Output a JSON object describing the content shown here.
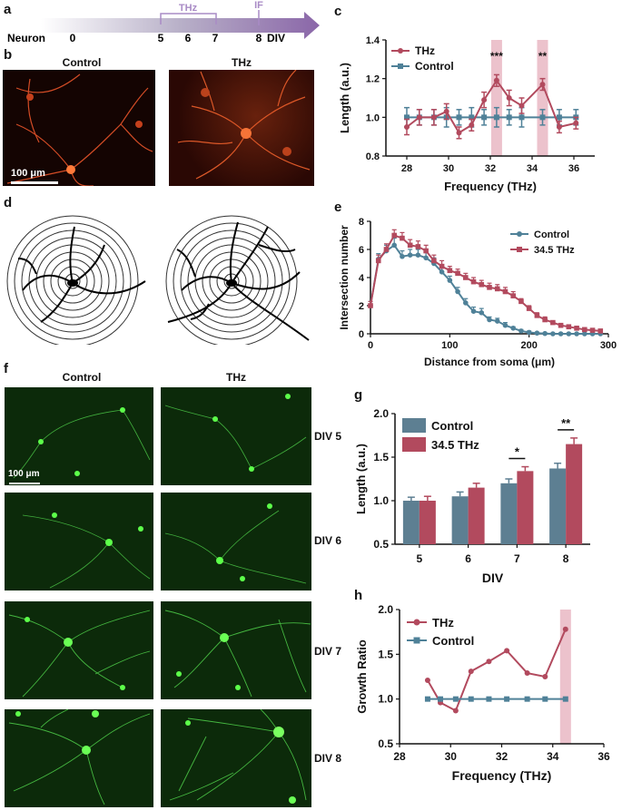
{
  "panels": {
    "a": "a",
    "b": "b",
    "c": "c",
    "d": "d",
    "e": "e",
    "f": "f",
    "g": "g",
    "h": "h"
  },
  "timeline": {
    "label": "Neuron",
    "ticks": [
      "0",
      "5",
      "6",
      "7",
      "8"
    ],
    "end_label": "DIV",
    "thz_label": "THz",
    "if_label": "IF",
    "colors": {
      "start": "#ffffff",
      "end": "#8a66a8",
      "thz": "#a98bc6"
    }
  },
  "images_b": {
    "left_label": "Control",
    "right_label": "THz",
    "scale_bar": "100 μm"
  },
  "images_f": {
    "left_label": "Control",
    "right_label": "THz",
    "scale_bar": "100 μm",
    "rows": [
      "DIV 5",
      "DIV 6",
      "DIV 7",
      "DIV 8"
    ]
  },
  "colors": {
    "thz": "#b24a5e",
    "control": "#4f8198",
    "highlight": "#e7b3bf",
    "bar_control": "#5d7f92",
    "bar_thz": "#b24a5e"
  },
  "chart_data": [
    {
      "id": "c",
      "type": "line",
      "xlabel": "Frequency (THz)",
      "ylabel": "Length (a.u.)",
      "xlim": [
        27,
        37
      ],
      "ylim": [
        0.8,
        1.4
      ],
      "xticks": [
        "28",
        "30",
        "32",
        "34",
        "36"
      ],
      "yticks": [
        "0.8",
        "1.0",
        "1.2",
        "1.4"
      ],
      "highlight_x": [
        32.3,
        34.5
      ],
      "annotations": [
        {
          "x": 32.3,
          "text": "***"
        },
        {
          "x": 34.5,
          "text": "**"
        }
      ],
      "legend": "top-left",
      "series": [
        {
          "name": "THz",
          "x": [
            28,
            28.6,
            29.3,
            29.9,
            30.5,
            31.1,
            31.7,
            32.3,
            32.9,
            33.5,
            34.5,
            35.3,
            36.1
          ],
          "y": [
            0.95,
            1.0,
            1.0,
            1.03,
            0.92,
            0.96,
            1.09,
            1.19,
            1.1,
            1.06,
            1.17,
            0.95,
            0.97
          ],
          "err": [
            0.04,
            0.04,
            0.04,
            0.04,
            0.03,
            0.03,
            0.04,
            0.03,
            0.04,
            0.04,
            0.03,
            0.03,
            0.03
          ]
        },
        {
          "name": "Control",
          "x": [
            28,
            28.6,
            29.3,
            29.9,
            30.5,
            31.1,
            31.7,
            32.3,
            32.9,
            33.5,
            34.5,
            35.3,
            36.1
          ],
          "y": [
            1.0,
            1.0,
            1.0,
            1.0,
            1.0,
            1.0,
            1.0,
            1.0,
            1.0,
            1.0,
            1.0,
            1.0,
            1.0
          ],
          "err": [
            0.05,
            0.04,
            0.04,
            0.05,
            0.04,
            0.05,
            0.04,
            0.05,
            0.04,
            0.05,
            0.04,
            0.04,
            0.04
          ]
        }
      ]
    },
    {
      "id": "e",
      "type": "line",
      "xlabel": "Distance from soma (μm)",
      "ylabel": "Intersection number",
      "xlim": [
        0,
        300
      ],
      "ylim": [
        0,
        8
      ],
      "xticks": [
        "0",
        "100",
        "200",
        "300"
      ],
      "yticks": [
        "0",
        "2",
        "4",
        "6",
        "8"
      ],
      "legend": "top-right",
      "series": [
        {
          "name": "Control",
          "x": [
            0,
            10,
            20,
            30,
            40,
            50,
            60,
            70,
            80,
            90,
            100,
            110,
            120,
            130,
            140,
            150,
            160,
            170,
            180,
            190,
            200,
            210,
            220,
            230,
            240,
            250,
            260,
            270,
            280,
            290
          ],
          "y": [
            2.0,
            5.3,
            5.9,
            6.3,
            5.5,
            5.6,
            5.6,
            5.4,
            5.0,
            4.4,
            3.8,
            3.0,
            2.2,
            1.6,
            1.5,
            1.0,
            0.9,
            0.6,
            0.4,
            0.2,
            0.1,
            0.05,
            0.02,
            0.0,
            0.0,
            0.0,
            0.0,
            0.0,
            0.0,
            0.0
          ],
          "err": [
            0.3,
            0.4,
            0.4,
            0.5,
            0.4,
            0.4,
            0.4,
            0.4,
            0.4,
            0.4,
            0.3,
            0.3,
            0.3,
            0.3,
            0.3,
            0.2,
            0.2,
            0.2,
            0.1,
            0.1,
            0.1,
            0.05,
            0.05,
            0,
            0,
            0,
            0,
            0,
            0,
            0
          ]
        },
        {
          "name": "34.5 THz",
          "x": [
            0,
            10,
            20,
            30,
            40,
            50,
            60,
            70,
            80,
            90,
            100,
            110,
            120,
            130,
            140,
            150,
            160,
            170,
            180,
            190,
            200,
            210,
            220,
            230,
            240,
            250,
            260,
            270,
            280,
            290
          ],
          "y": [
            2.0,
            5.2,
            6.0,
            7.0,
            6.8,
            6.3,
            6.2,
            5.9,
            5.2,
            4.8,
            4.5,
            4.3,
            4.0,
            3.7,
            3.5,
            3.3,
            3.2,
            3.0,
            2.7,
            2.3,
            1.8,
            1.3,
            1.0,
            0.8,
            0.6,
            0.5,
            0.4,
            0.3,
            0.25,
            0.2
          ],
          "err": [
            0.3,
            0.4,
            0.4,
            0.4,
            0.4,
            0.4,
            0.4,
            0.4,
            0.4,
            0.4,
            0.3,
            0.3,
            0.3,
            0.3,
            0.3,
            0.3,
            0.3,
            0.3,
            0.3,
            0.2,
            0.2,
            0.2,
            0.2,
            0.1,
            0.1,
            0.1,
            0.1,
            0.1,
            0.1,
            0.1
          ]
        }
      ]
    },
    {
      "id": "g",
      "type": "bar",
      "xlabel": "DIV",
      "ylabel": "Length (a.u.)",
      "categories": [
        "5",
        "6",
        "7",
        "8"
      ],
      "ylim": [
        0.5,
        2.0
      ],
      "yticks": [
        "0.5",
        "1.0",
        "1.5",
        "2.0"
      ],
      "legend": "top-left",
      "series": [
        {
          "name": "Control",
          "values": [
            1.0,
            1.05,
            1.2,
            1.37
          ],
          "err": [
            0.04,
            0.05,
            0.05,
            0.06
          ]
        },
        {
          "name": "34.5 THz",
          "values": [
            1.0,
            1.15,
            1.34,
            1.65
          ],
          "err": [
            0.05,
            0.05,
            0.05,
            0.07
          ]
        }
      ],
      "annotations": [
        {
          "category": "7",
          "text": "*"
        },
        {
          "category": "8",
          "text": "**"
        }
      ]
    },
    {
      "id": "h",
      "type": "line",
      "xlabel": "Frequency (THz)",
      "ylabel": "Growth Ratio",
      "xlim": [
        28,
        36
      ],
      "ylim": [
        0.5,
        2.0
      ],
      "xticks": [
        "28",
        "30",
        "32",
        "34",
        "36"
      ],
      "yticks": [
        "0.5",
        "1.0",
        "1.5",
        "2.0"
      ],
      "highlight_x": [
        34.5
      ],
      "legend": "top-left",
      "series": [
        {
          "name": "THz",
          "x": [
            29.1,
            29.6,
            30.2,
            30.8,
            31.5,
            32.2,
            33.0,
            33.7,
            34.5
          ],
          "y": [
            1.21,
            0.96,
            0.87,
            1.31,
            1.42,
            1.54,
            1.29,
            1.25,
            1.78
          ]
        },
        {
          "name": "Control",
          "x": [
            29.1,
            29.6,
            30.2,
            30.8,
            31.5,
            32.2,
            33.0,
            33.7,
            34.5
          ],
          "y": [
            1.0,
            1.0,
            1.0,
            1.0,
            1.0,
            1.0,
            1.0,
            1.0,
            1.0
          ]
        }
      ]
    }
  ]
}
